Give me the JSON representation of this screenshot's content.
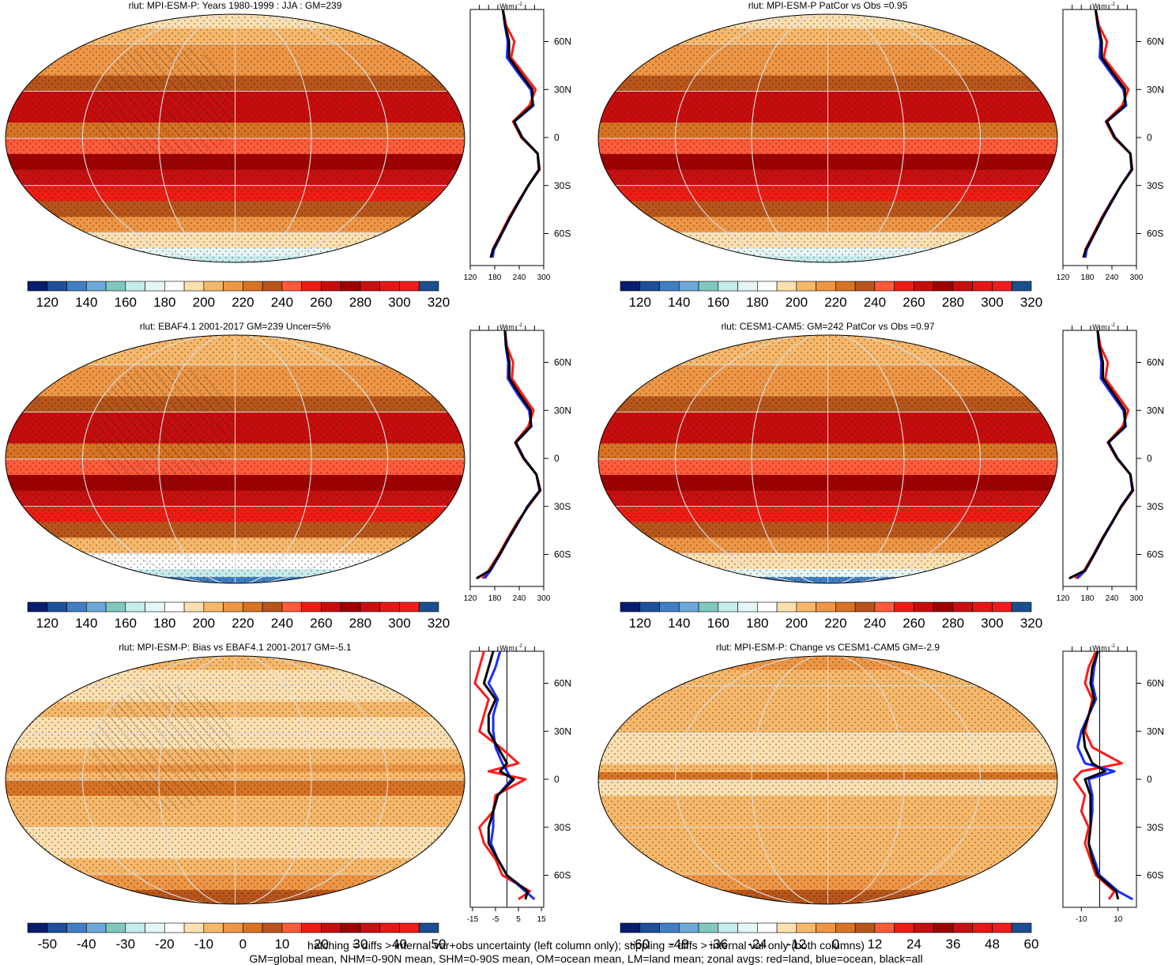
{
  "chart_data": {
    "type": "map_panels",
    "variable": "rlut",
    "zonal_units_prefix": "W m",
    "zonal_units_exponent": "-2",
    "lat_labels": [
      "60N",
      "30N",
      "0",
      "30S",
      "60S"
    ],
    "lat_values": [
      60,
      30,
      0,
      -30,
      -60
    ],
    "palette_abs": [
      "#081d6e",
      "#1e4f9a",
      "#3f7fc2",
      "#6da8d8",
      "#7fc8c0",
      "#c6ecec",
      "#e6f6f6",
      "#ffffff",
      "#fde0b0",
      "#f7b86a",
      "#ee9645",
      "#d87324",
      "#b8551a",
      "#ff5a3a",
      "#f01c14",
      "#c80c0c",
      "#9e0000",
      "#c81010",
      "#e81616",
      "#f01c1c",
      "#1a4e8e"
    ],
    "palette_diff": [
      "#081d6e",
      "#1e4f9a",
      "#3f7fc2",
      "#6da8d8",
      "#7fc8c0",
      "#c6ecec",
      "#e6f6f6",
      "#ffffff",
      "#fde0b0",
      "#f7b86a",
      "#ee9645",
      "#d87324",
      "#b8551a",
      "#ff5a3a",
      "#f01c14",
      "#c80c0c",
      "#9e0000",
      "#c81010",
      "#e81616",
      "#f01c1c",
      "#1a4e8e"
    ],
    "panels": [
      {
        "title": "rlut: MPI-ESM-P: Years 1980-1999 : JJA : GM=239",
        "kind": "abs",
        "colorbar_labels": [
          "120",
          "140",
          "160",
          "180",
          "200",
          "220",
          "240",
          "260",
          "280",
          "300",
          "320"
        ],
        "zonal_xlim": [
          120,
          300
        ],
        "zonal_xticks": [
          "120",
          "180",
          "240",
          "300"
        ],
        "zonal_lat": [
          80,
          70,
          60,
          50,
          40,
          30,
          20,
          10,
          0,
          -10,
          -20,
          -30,
          -40,
          -50,
          -60,
          -70,
          -75
        ],
        "zonal_land": [
          200,
          208,
          228,
          220,
          250,
          280,
          265,
          225,
          245,
          285,
          290,
          262,
          238,
          215,
          195,
          175,
          175
        ],
        "zonal_ocean": [
          200,
          205,
          212,
          210,
          238,
          268,
          275,
          228,
          248,
          285,
          288,
          262,
          240,
          218,
          198,
          178,
          175
        ],
        "zonal_all": [
          200,
          206,
          215,
          215,
          243,
          272,
          272,
          227,
          247,
          285,
          289,
          262,
          239,
          217,
          197,
          176,
          170
        ]
      },
      {
        "title": "rlut: MPI-ESM-P PatCor vs Obs =0.95",
        "kind": "abs",
        "colorbar_labels": [
          "120",
          "140",
          "160",
          "180",
          "200",
          "220",
          "240",
          "260",
          "280",
          "300",
          "320"
        ],
        "zonal_xlim": [
          120,
          300
        ],
        "zonal_xticks": [
          "120",
          "180",
          "240",
          "300"
        ],
        "zonal_lat": [
          80,
          70,
          60,
          50,
          40,
          30,
          20,
          10,
          0,
          -10,
          -20,
          -30,
          -40,
          -50,
          -60,
          -70,
          -75
        ],
        "zonal_land": [
          200,
          208,
          228,
          220,
          250,
          280,
          265,
          225,
          245,
          285,
          290,
          262,
          238,
          215,
          195,
          175,
          175
        ],
        "zonal_ocean": [
          200,
          205,
          212,
          210,
          238,
          268,
          275,
          228,
          248,
          285,
          288,
          262,
          240,
          218,
          198,
          178,
          175
        ],
        "zonal_all": [
          200,
          206,
          215,
          215,
          243,
          272,
          272,
          227,
          247,
          285,
          289,
          262,
          239,
          217,
          197,
          176,
          170
        ]
      },
      {
        "title": "rlut: EBAF4.1 2001-2017 GM=239 Uncer=5%",
        "kind": "abs",
        "colorbar_labels": [
          "120",
          "140",
          "160",
          "180",
          "200",
          "220",
          "240",
          "260",
          "280",
          "300",
          "320"
        ],
        "zonal_xlim": [
          120,
          300
        ],
        "zonal_xticks": [
          "120",
          "180",
          "240",
          "300"
        ],
        "zonal_lat": [
          80,
          70,
          60,
          50,
          40,
          30,
          20,
          10,
          0,
          -10,
          -20,
          -30,
          -40,
          -50,
          -60,
          -70,
          -75
        ],
        "zonal_land": [
          205,
          210,
          225,
          222,
          248,
          275,
          262,
          230,
          250,
          282,
          292,
          262,
          235,
          212,
          190,
          165,
          150
        ],
        "zonal_ocean": [
          205,
          207,
          213,
          212,
          236,
          264,
          270,
          232,
          252,
          282,
          290,
          260,
          238,
          215,
          193,
          170,
          155
        ],
        "zonal_all": [
          205,
          208,
          216,
          216,
          241,
          268,
          268,
          231,
          251,
          282,
          291,
          261,
          237,
          214,
          192,
          168,
          135
        ]
      },
      {
        "title": "rlut: CESM1-CAM5: GM=242 PatCor vs Obs =0.97",
        "kind": "abs",
        "colorbar_labels": [
          "120",
          "140",
          "160",
          "180",
          "200",
          "220",
          "240",
          "260",
          "280",
          "300",
          "320"
        ],
        "zonal_xlim": [
          120,
          300
        ],
        "zonal_xticks": [
          "120",
          "180",
          "240",
          "300"
        ],
        "zonal_lat": [
          80,
          70,
          60,
          50,
          40,
          30,
          20,
          10,
          0,
          -10,
          -20,
          -30,
          -40,
          -50,
          -60,
          -70,
          -75
        ],
        "zonal_land": [
          205,
          212,
          230,
          224,
          252,
          280,
          266,
          230,
          252,
          285,
          292,
          264,
          240,
          216,
          195,
          172,
          150
        ],
        "zonal_ocean": [
          205,
          208,
          214,
          213,
          240,
          268,
          274,
          232,
          254,
          285,
          290,
          262,
          241,
          218,
          197,
          175,
          155
        ],
        "zonal_all": [
          205,
          209,
          218,
          218,
          245,
          272,
          272,
          231,
          253,
          285,
          291,
          263,
          240,
          217,
          196,
          174,
          135
        ]
      },
      {
        "title": "rlut: MPI-ESM-P: Bias vs EBAF4.1 2001-2017 GM=-5.1",
        "kind": "diff",
        "colorbar_labels": [
          "-50",
          "-40",
          "-30",
          "-20",
          "-10",
          "0",
          "10",
          "20",
          "30",
          "40",
          "50"
        ],
        "zonal_xlim": [
          -16,
          16
        ],
        "zonal_xticks": [
          "-15",
          "-5",
          "5",
          "15"
        ],
        "zonal_lat": [
          80,
          70,
          60,
          50,
          40,
          30,
          20,
          10,
          5,
          0,
          -10,
          -20,
          -30,
          -40,
          -50,
          -60,
          -70,
          -75
        ],
        "zonal_land": [
          -10,
          -12,
          -14,
          -8,
          -10,
          -12,
          -3,
          5,
          -8,
          8,
          -5,
          -6,
          -12,
          -10,
          -5,
          -2,
          10,
          5
        ],
        "zonal_ocean": [
          -3,
          -5,
          -8,
          -4,
          -6,
          -6,
          -5,
          -2,
          0,
          2,
          -4,
          -6,
          -6,
          -7,
          -4,
          0,
          8,
          12
        ],
        "zonal_all": [
          -6,
          -8,
          -10,
          -5,
          -8,
          -8,
          -4,
          0,
          -3,
          3,
          -4,
          -6,
          -8,
          -8,
          -4,
          0,
          9,
          8
        ]
      },
      {
        "title": "rlut: MPI-ESM-P: Change vs CESM1-CAM5 GM=-2.9",
        "kind": "diff",
        "colorbar_labels": [
          "-60",
          "-48",
          "-36",
          "-24",
          "-12",
          "0",
          "12",
          "24",
          "36",
          "48",
          "60"
        ],
        "zonal_xlim": [
          -20,
          20
        ],
        "zonal_xticks": [
          "-10",
          "10"
        ],
        "zonal_lat": [
          80,
          70,
          60,
          50,
          40,
          30,
          20,
          10,
          5,
          0,
          -10,
          -20,
          -30,
          -40,
          -50,
          -60,
          -70,
          -75
        ],
        "zonal_land": [
          -2,
          -6,
          -8,
          -4,
          -6,
          -8,
          -4,
          12,
          -10,
          -14,
          -8,
          -10,
          -6,
          -8,
          -5,
          -2,
          8,
          5
        ],
        "zonal_ocean": [
          -1,
          -3,
          -4,
          -2,
          -6,
          -10,
          -12,
          -8,
          8,
          -6,
          -4,
          -4,
          -5,
          -6,
          -3,
          0,
          10,
          18
        ],
        "zonal_all": [
          -1,
          -4,
          -5,
          -3,
          -6,
          -9,
          -8,
          -4,
          3,
          -8,
          -5,
          -5,
          -5,
          -6,
          -4,
          -1,
          9,
          10
        ]
      }
    ]
  },
  "footer": {
    "line1": "hatching = diffs > internal var+obs uncertainty (left column only); stippling = diffs > internal var only (both columns)",
    "line2": "GM=global mean, NHM=0-90N mean, SHM=0-90S mean, OM=ocean mean, LM=land mean; zonal avgs: red=land, blue=ocean, black=all"
  }
}
